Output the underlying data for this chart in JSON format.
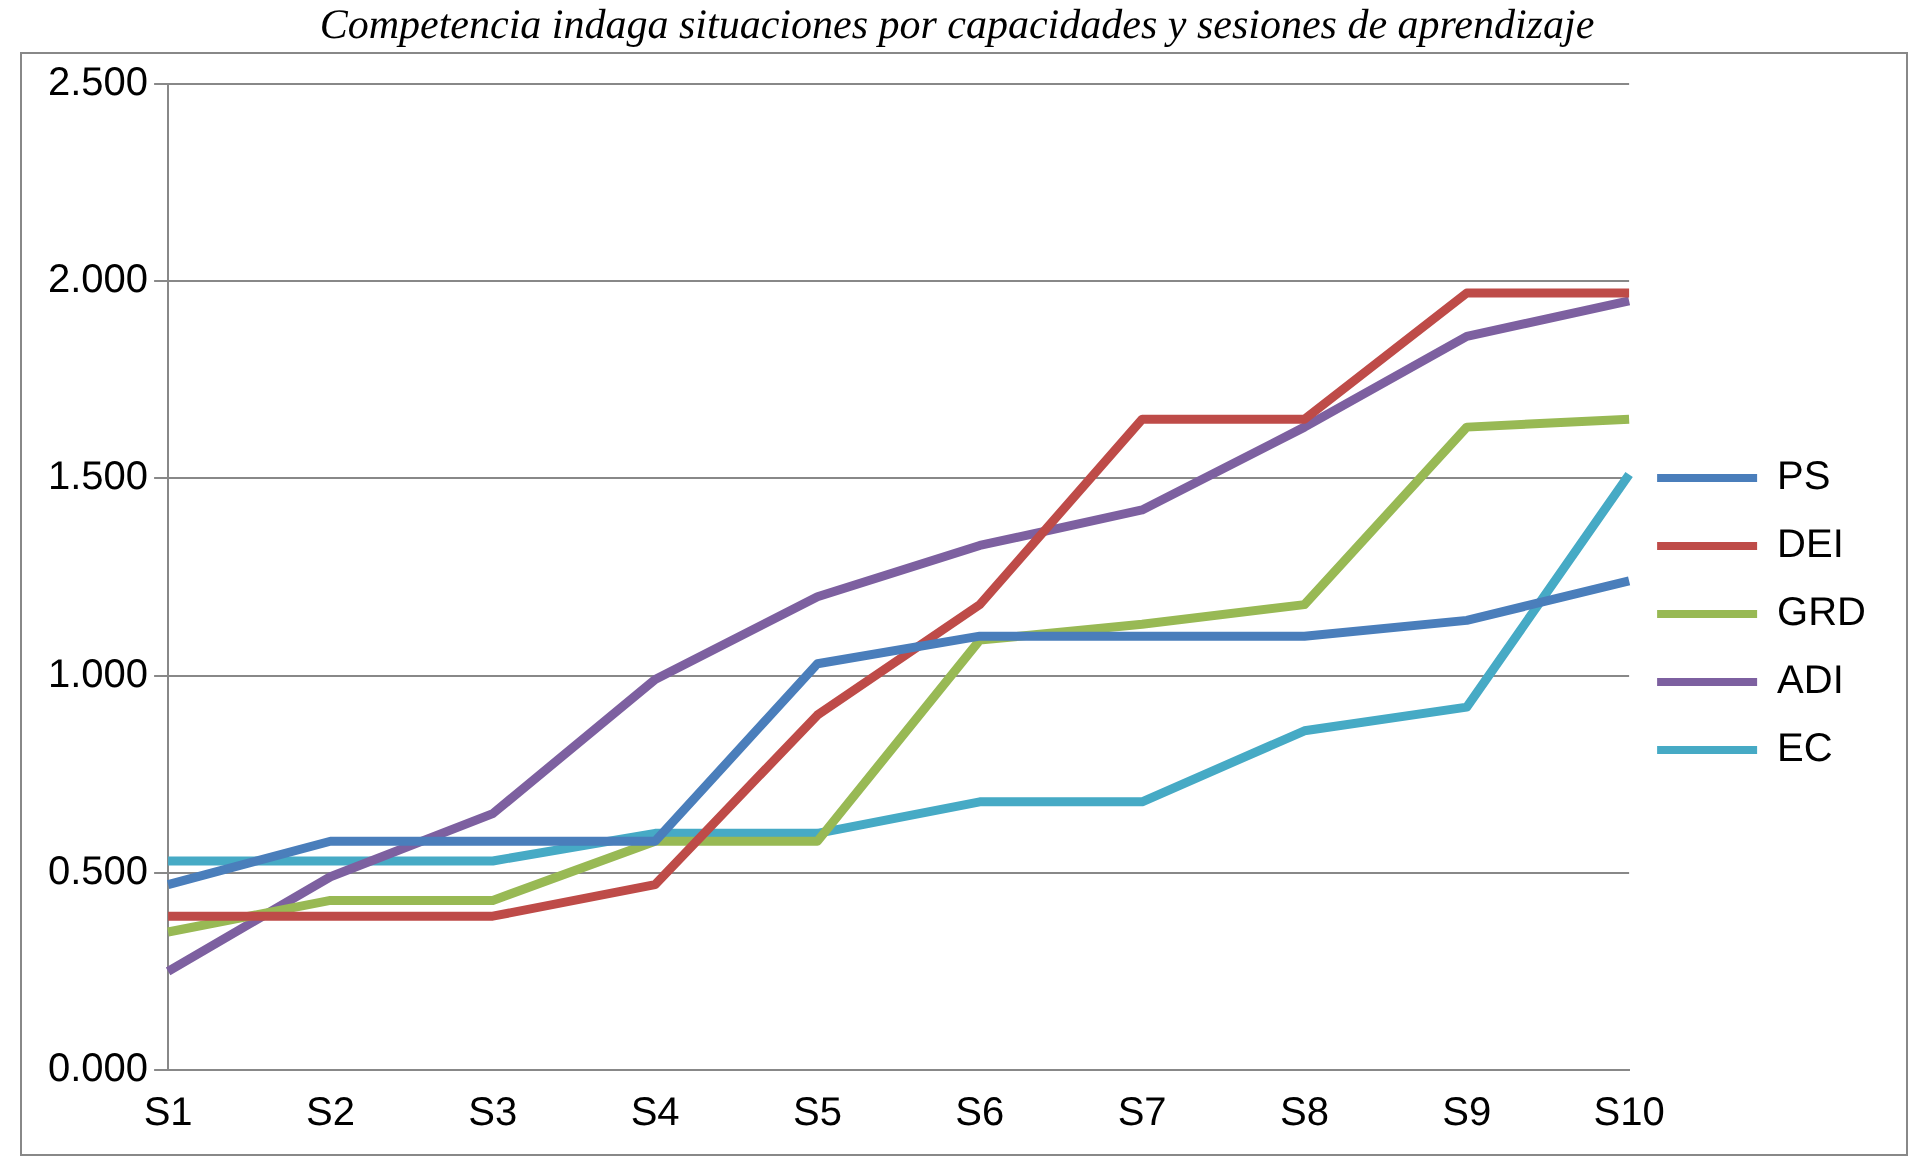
{
  "chart_data": {
    "type": "line",
    "title": "Competencia indaga situaciones por capacidades y sesiones de aprendizaje",
    "categories": [
      "S1",
      "S2",
      "S3",
      "S4",
      "S5",
      "S6",
      "S7",
      "S8",
      "S9",
      "S10"
    ],
    "series": [
      {
        "name": "PS",
        "color": "#4a7ebb",
        "values": [
          0.47,
          0.58,
          0.58,
          0.58,
          1.03,
          1.1,
          1.1,
          1.1,
          1.14,
          1.24
        ]
      },
      {
        "name": "DEI",
        "color": "#be4b48",
        "values": [
          0.39,
          0.39,
          0.39,
          0.47,
          0.9,
          1.18,
          1.65,
          1.65,
          1.97,
          1.97
        ]
      },
      {
        "name": "GRD",
        "color": "#98b954",
        "values": [
          0.35,
          0.43,
          0.43,
          0.58,
          0.58,
          1.09,
          1.13,
          1.18,
          1.63,
          1.65
        ]
      },
      {
        "name": "ADI",
        "color": "#7d60a0",
        "values": [
          0.25,
          0.49,
          0.65,
          0.99,
          1.2,
          1.33,
          1.42,
          1.63,
          1.86,
          1.95
        ]
      },
      {
        "name": "EC",
        "color": "#46aac5",
        "values": [
          0.53,
          0.53,
          0.53,
          0.6,
          0.6,
          0.68,
          0.68,
          0.86,
          0.92,
          1.51
        ]
      }
    ],
    "ylim": [
      0,
      2.5
    ],
    "yticks": [
      {
        "value": 0,
        "label": "0.000"
      },
      {
        "value": 0.5,
        "label": "0.500"
      },
      {
        "value": 1,
        "label": "1.000"
      },
      {
        "value": 1.5,
        "label": "1.500"
      },
      {
        "value": 2,
        "label": "2.000"
      },
      {
        "value": 2.5,
        "label": "2.500"
      }
    ],
    "grid": "y",
    "legend": "right",
    "marker": "none",
    "line_style": "solid"
  }
}
